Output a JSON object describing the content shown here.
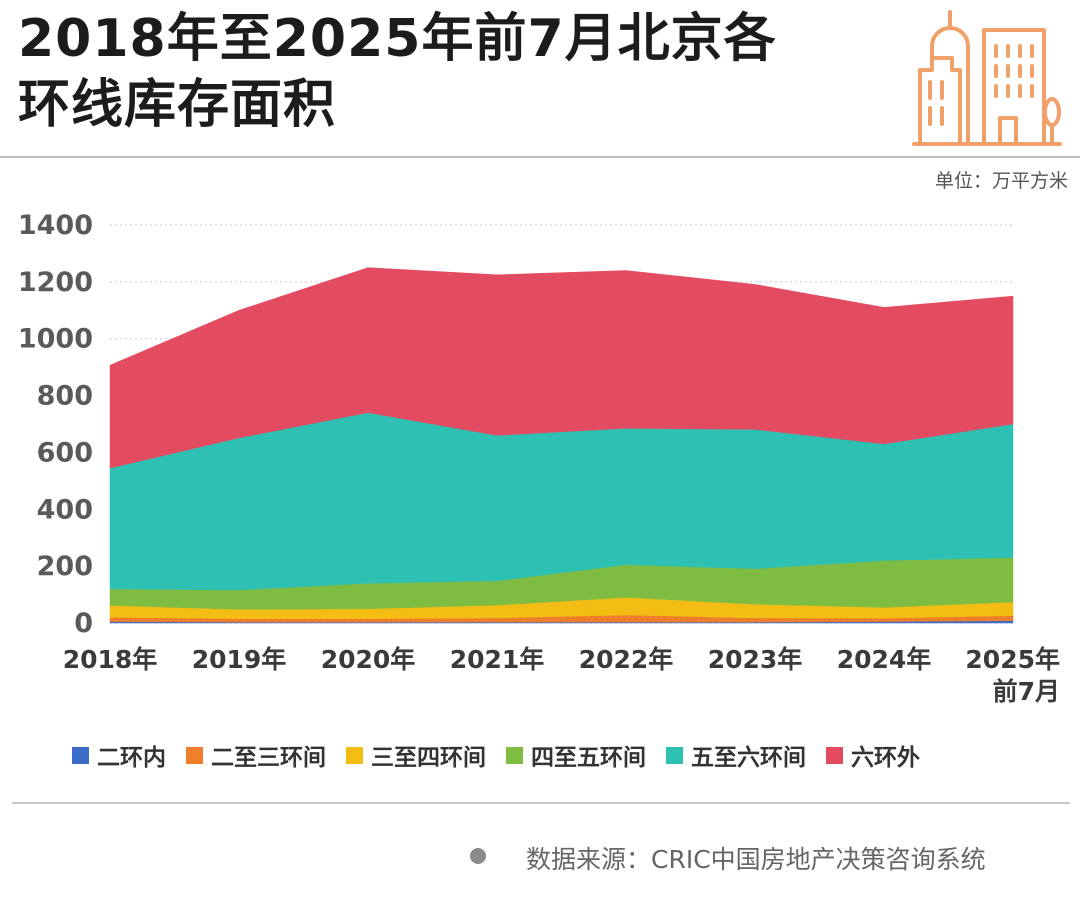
{
  "header": {
    "title_line1": "2018年至2025年前7月北京各",
    "title_line2": "环线库存面积",
    "logo_icon": "city-buildings-icon",
    "logo_color": "#f0a069",
    "unit": "单位：万平方米"
  },
  "chart_data": {
    "type": "area",
    "stacked": true,
    "categories": [
      "2018年",
      "2019年",
      "2020年",
      "2021年",
      "2022年",
      "2023年",
      "2024年",
      "2025年前7月"
    ],
    "category_labels": [
      [
        "2018年"
      ],
      [
        "2019年"
      ],
      [
        "2020年"
      ],
      [
        "2021年"
      ],
      [
        "2022年"
      ],
      [
        "2023年"
      ],
      [
        "2024年"
      ],
      [
        "2025年",
        "前7月"
      ]
    ],
    "ylim": [
      0,
      1400
    ],
    "yticks": [
      0,
      200,
      400,
      600,
      800,
      1000,
      1200,
      1400
    ],
    "grid": true,
    "legend_position": "bottom",
    "series": [
      {
        "name": "二环内",
        "color": "#3a6cc8",
        "values": [
          5,
          3,
          3,
          3,
          3,
          3,
          5,
          8
        ]
      },
      {
        "name": "二至三环间",
        "color": "#ef7e2a",
        "values": [
          15,
          12,
          12,
          15,
          25,
          15,
          12,
          18
        ]
      },
      {
        "name": "三至四环间",
        "color": "#f3bd14",
        "values": [
          42,
          33,
          35,
          45,
          62,
          48,
          38,
          48
        ]
      },
      {
        "name": "四至五环间",
        "color": "#7fbd42",
        "values": [
          58,
          68,
          90,
          85,
          115,
          125,
          165,
          156
        ]
      },
      {
        "name": "五至六环间",
        "color": "#2fc0b4",
        "values": [
          425,
          535,
          600,
          512,
          480,
          490,
          410,
          470
        ]
      },
      {
        "name": "六环外",
        "color": "#e34b60",
        "values": [
          362,
          449,
          510,
          565,
          555,
          510,
          480,
          450
        ]
      }
    ]
  },
  "footer": {
    "source": "数据来源：CRIC中国房地产决策咨询系统",
    "source_dot_color": "#8a8a8a"
  }
}
